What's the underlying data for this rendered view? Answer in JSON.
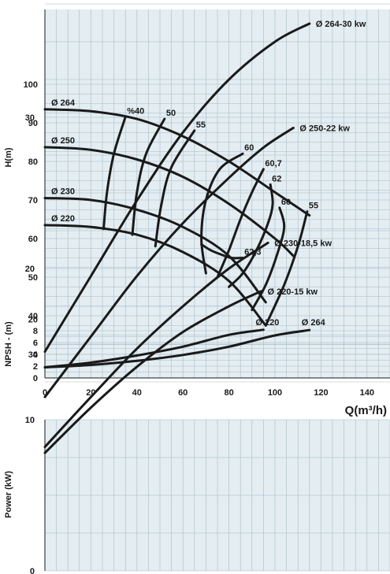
{
  "chart_data": [
    {
      "type": "line",
      "name": "head",
      "ylabel": "H(m)",
      "xlim": [
        0,
        150
      ],
      "ylim": [
        30,
        100
      ],
      "y_ticks": [
        30,
        40,
        50,
        60,
        70,
        80,
        90,
        100
      ],
      "grid": true,
      "series": [
        {
          "name": "Ø 264",
          "x": [
            0,
            20,
            40,
            60,
            80,
            100,
            115
          ],
          "y": [
            93.5,
            93,
            91,
            86.5,
            80,
            72,
            66
          ]
        },
        {
          "name": "Ø 250",
          "x": [
            0,
            20,
            40,
            60,
            80,
            100,
            108
          ],
          "y": [
            83.7,
            83,
            80.5,
            76,
            69,
            60,
            55.5
          ]
        },
        {
          "name": "Ø 230",
          "x": [
            0,
            20,
            40,
            60,
            80,
            96
          ],
          "y": [
            70.5,
            70,
            67.5,
            63,
            55.5,
            43.5
          ]
        },
        {
          "name": "Ø 220",
          "x": [
            0,
            20,
            40,
            60,
            80,
            96
          ],
          "y": [
            63.5,
            63,
            61,
            56.5,
            49,
            37.5
          ]
        }
      ],
      "efficiency_curves": [
        {
          "label": "%40",
          "x": [
            25.5,
            27,
            30,
            35
          ],
          "y": [
            62.5,
            72,
            82,
            91.5
          ]
        },
        {
          "label": "50",
          "x": [
            38,
            40,
            44,
            52
          ],
          "y": [
            61,
            72,
            82,
            91
          ]
        },
        {
          "label": "55",
          "x": [
            48,
            50.5,
            55,
            65
          ],
          "y": [
            58,
            68.5,
            78.5,
            88
          ]
        },
        {
          "label": "60",
          "x": [
            70,
            68,
            70,
            76,
            86
          ],
          "y": [
            51,
            60,
            70,
            78,
            82
          ]
        },
        {
          "label": "60,7",
          "x": [
            75,
            80,
            85,
            90,
            95
          ],
          "y": [
            50,
            57,
            65,
            72,
            78
          ]
        },
        {
          "label": "62",
          "x": [
            80,
            86,
            92,
            97,
            99,
            98
          ],
          "y": [
            47.5,
            51,
            57,
            64,
            69,
            74
          ]
        },
        {
          "label": "62,3",
          "x": [
            68,
            72,
            76,
            81,
            86
          ],
          "y": [
            58.5,
            57,
            56,
            55,
            55
          ]
        },
        {
          "label": "60 ",
          "x": [
            90,
            96,
            101,
            104,
            102
          ],
          "y": [
            41.5,
            48,
            56,
            63,
            68
          ]
        },
        {
          "label": "55 ",
          "x": [
            96,
            104,
            110,
            114
          ],
          "y": [
            37.5,
            48,
            58,
            67
          ]
        }
      ]
    },
    {
      "type": "line",
      "name": "npsh",
      "ylabel": "NPSH - (m)",
      "xlim": [
        0,
        150
      ],
      "y_ticks": [
        0,
        2,
        4,
        6,
        8,
        20
      ],
      "x_ticks": [
        0,
        20,
        40,
        60,
        80,
        100,
        120,
        140
      ],
      "xlabel": "Q(m³/h)",
      "grid": true,
      "series": [
        {
          "name": "Ø 220",
          "x": [
            0,
            20,
            40,
            60,
            80,
            95
          ],
          "y": [
            1.8,
            2.6,
            3.8,
            5.3,
            7.3,
            9.0
          ]
        },
        {
          "name": "Ø 264",
          "x": [
            0,
            20,
            40,
            60,
            80,
            100,
            115
          ],
          "y": [
            1.8,
            2.2,
            2.9,
            3.9,
            5.3,
            7.2,
            8.7
          ]
        }
      ]
    },
    {
      "type": "line",
      "name": "power",
      "ylabel": "Power (kW)",
      "xlim": [
        0,
        150
      ],
      "ylim": [
        0,
        40
      ],
      "y_ticks": [
        0,
        10,
        20,
        30,
        40
      ],
      "grid": true,
      "series": [
        {
          "name": "Ø 264-30 kw",
          "x": [
            0,
            20,
            40,
            60,
            80,
            100,
            115
          ],
          "y": [
            14.5,
            19.5,
            24.5,
            29,
            32.5,
            35,
            36.2
          ]
        },
        {
          "name": "Ø 250-22 kw",
          "x": [
            0,
            20,
            40,
            60,
            80,
            95,
            108
          ],
          "y": [
            11.5,
            15.5,
            19.5,
            23,
            26,
            28,
            29.3
          ]
        },
        {
          "name": "Ø 230-18,5 kw",
          "x": [
            0,
            20,
            40,
            60,
            80,
            97
          ],
          "y": [
            8.2,
            11.5,
            14.7,
            17.5,
            20,
            21.7
          ]
        },
        {
          "name": "Ø 220-15 kw",
          "x": [
            0,
            20,
            40,
            60,
            80,
            94
          ],
          "y": [
            7.8,
            10.8,
            13.5,
            15.8,
            17.5,
            18.5
          ]
        }
      ]
    }
  ]
}
